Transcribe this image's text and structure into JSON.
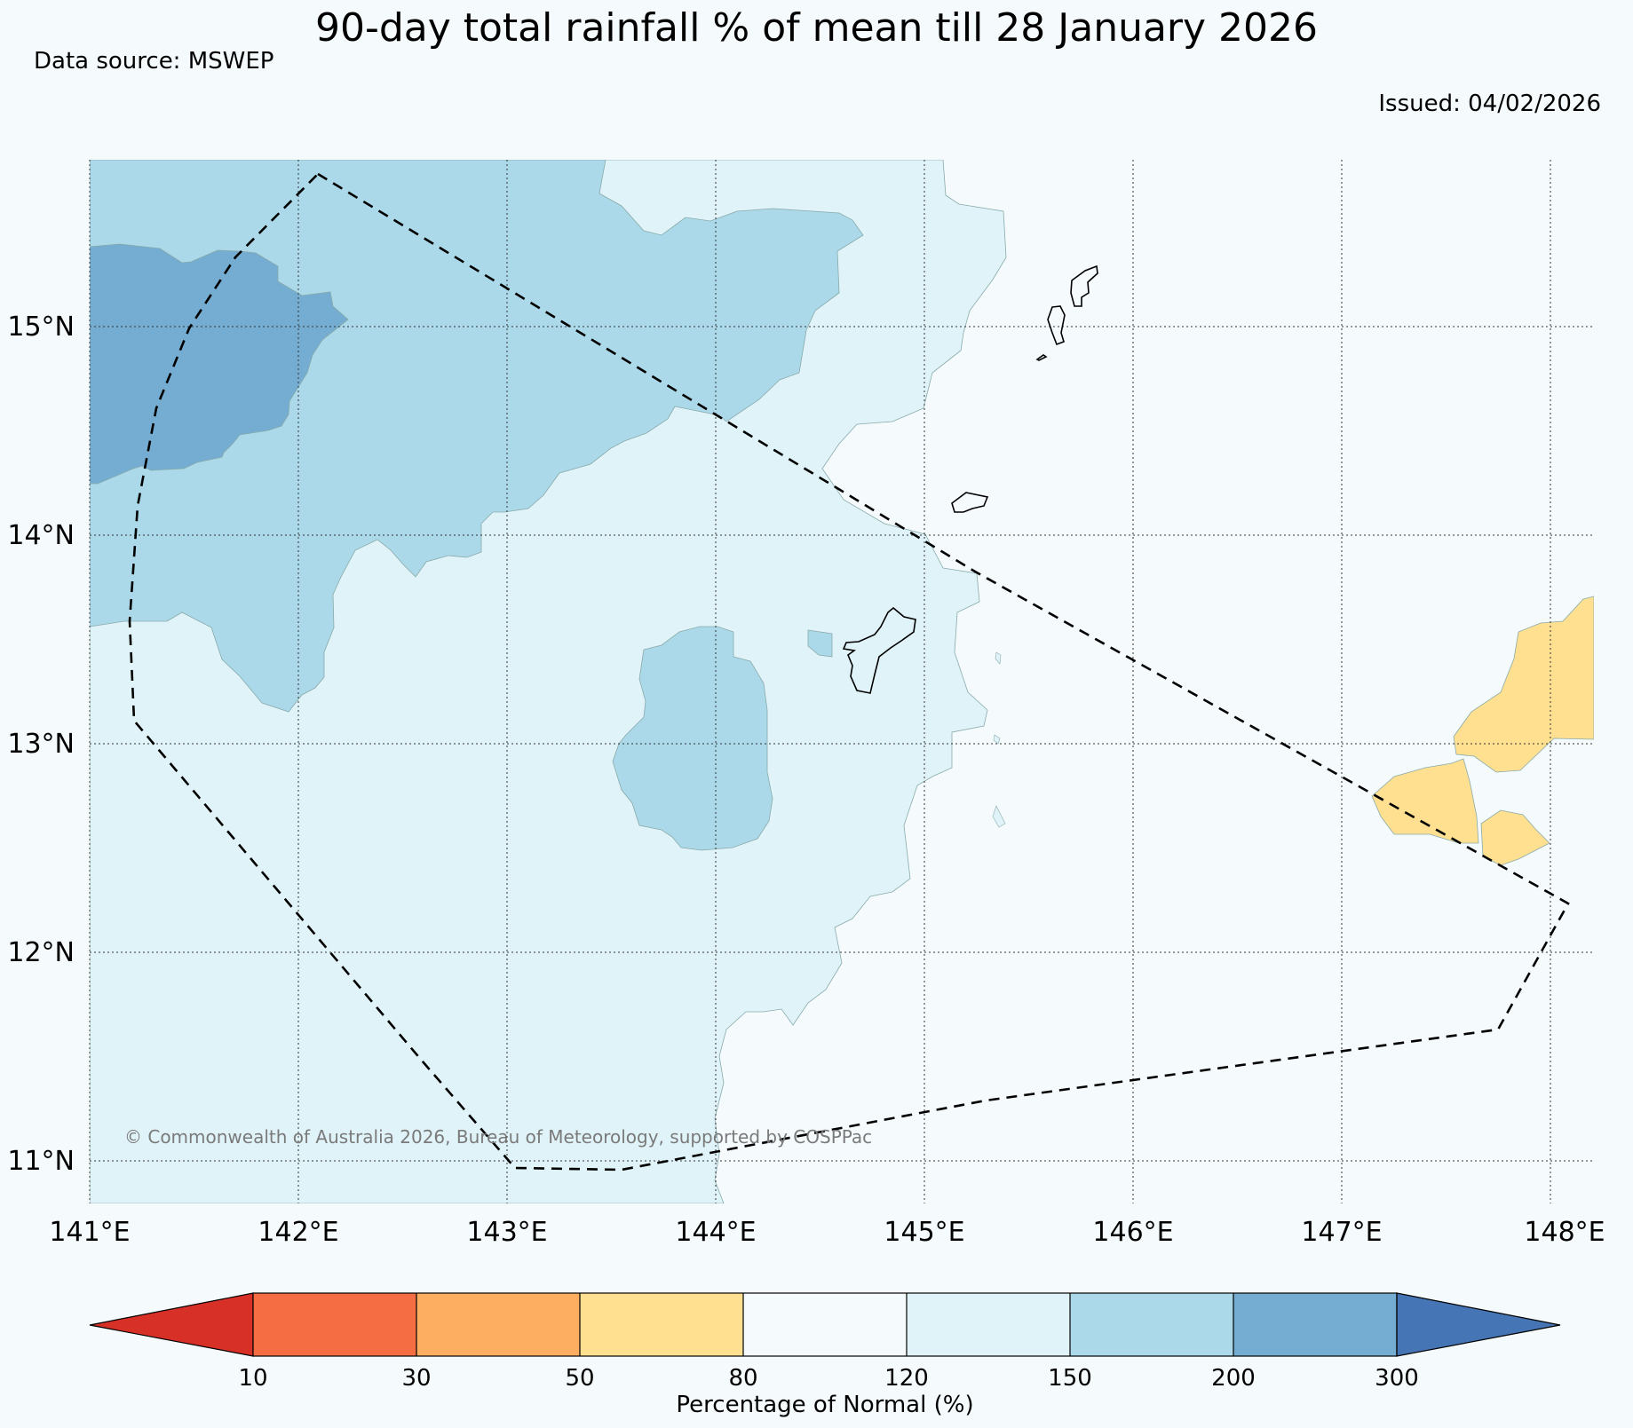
{
  "title": "90-day total rainfall % of mean till 28 January 2026",
  "source": "Data source: MSWEP",
  "issued": "Issued: 04/02/2026",
  "copyright": "© Commonwealth of Australia 2026, Bureau of Meteorology, supported by COSPPac",
  "map": {
    "lon_labels": [
      "141°E",
      "142°E",
      "143°E",
      "144°E",
      "145°E",
      "146°E",
      "147°E",
      "148°E"
    ],
    "lat_labels": [
      "15°N",
      "14°N",
      "13°N",
      "12°N",
      "11°N"
    ]
  },
  "colorbar": {
    "label": "Percentage of Normal (%)",
    "ticks": [
      "10",
      "30",
      "50",
      "80",
      "120",
      "150",
      "200",
      "300"
    ],
    "colors": {
      "below_10": "#d73027",
      "10_30": "#f46d43",
      "30_50": "#fdae61",
      "50_80": "#fee090",
      "80_120": "#f5fbfd",
      "120_150": "#e0f3f8",
      "150_200": "#abd9e9",
      "200_300": "#74add1",
      "above_300": "#4575b4"
    }
  }
}
